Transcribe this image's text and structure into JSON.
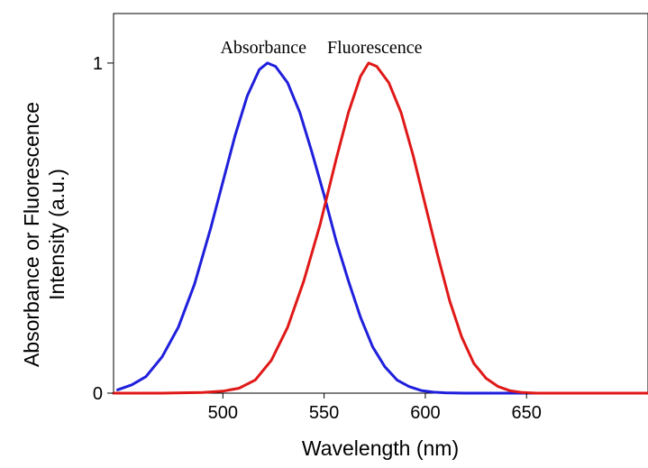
{
  "chart_data": {
    "type": "line",
    "xlabel": "Wavelength (nm)",
    "ylabel_lines": [
      "Absorbance or Fluorescence",
      "Intensity (a.u.)"
    ],
    "xlim": [
      446,
      710
    ],
    "ylim": [
      0,
      1.15
    ],
    "x_ticks": [
      500,
      550,
      600,
      650
    ],
    "x_tick_labels": [
      "500",
      "550",
      "600",
      "650"
    ],
    "y_ticks": [
      0,
      1
    ],
    "y_tick_labels": [
      "0",
      "1"
    ],
    "grid": false,
    "series": [
      {
        "name": "Absorbance",
        "color": "#1f1fdc",
        "x": [
          448,
          455,
          462,
          470,
          478,
          486,
          494,
          500,
          506,
          512,
          518,
          522,
          526,
          532,
          538,
          544,
          550,
          556,
          562,
          568,
          574,
          580,
          586,
          592,
          598,
          604,
          610,
          620,
          635,
          650,
          670,
          690,
          710
        ],
        "y": [
          0.01,
          0.025,
          0.05,
          0.11,
          0.2,
          0.33,
          0.5,
          0.64,
          0.78,
          0.9,
          0.98,
          1.0,
          0.99,
          0.94,
          0.85,
          0.73,
          0.6,
          0.46,
          0.34,
          0.23,
          0.14,
          0.08,
          0.04,
          0.02,
          0.008,
          0.003,
          0.001,
          0.0,
          0.0,
          0.0,
          0.0,
          0.0,
          0.0
        ]
      },
      {
        "name": "Fluorescence",
        "color": "#e01818",
        "x": [
          446,
          470,
          490,
          500,
          508,
          516,
          524,
          532,
          540,
          548,
          556,
          562,
          568,
          572,
          576,
          582,
          588,
          594,
          600,
          606,
          612,
          618,
          624,
          630,
          636,
          642,
          648,
          655,
          665,
          680,
          710
        ],
        "y": [
          0.0,
          0.0,
          0.002,
          0.006,
          0.015,
          0.04,
          0.1,
          0.2,
          0.34,
          0.51,
          0.71,
          0.85,
          0.96,
          1.0,
          0.99,
          0.94,
          0.85,
          0.72,
          0.57,
          0.42,
          0.28,
          0.17,
          0.09,
          0.045,
          0.02,
          0.007,
          0.002,
          0.0,
          0.0,
          0.0,
          0.0
        ]
      }
    ],
    "annotations": [
      {
        "text": "Absorbance",
        "x": 520,
        "y": 1.03
      },
      {
        "text": "Fluorescence",
        "x": 575,
        "y": 1.03
      }
    ]
  }
}
